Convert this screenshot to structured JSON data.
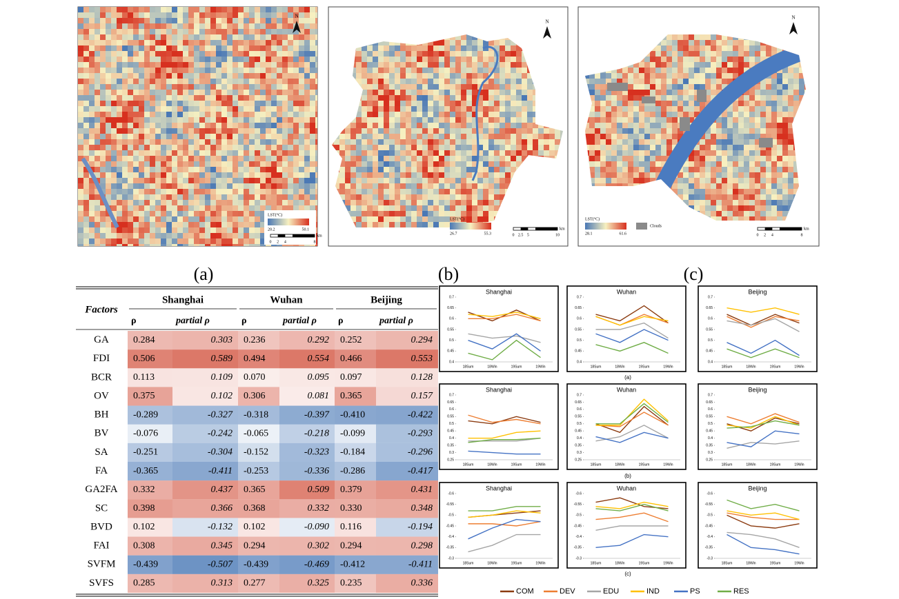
{
  "maps": [
    {
      "north": "N",
      "legend_title": "LST(°C)",
      "legend_min": 20.2,
      "legend_max": 50.1,
      "scale_labels": [
        0,
        2,
        4,
        8
      ],
      "scale_unit": "km"
    },
    {
      "north": "N",
      "legend_title": "LST(°C)",
      "legend_min": 26.7,
      "legend_max": 55.3,
      "scale_labels": [
        0,
        2.5,
        5,
        10
      ],
      "scale_unit": "km"
    },
    {
      "north": "N",
      "legend_title": "LST(°C)",
      "legend_min": 28.1,
      "legend_max": 61.6,
      "clouds": "Clouds",
      "scale_labels": [
        0,
        2,
        4,
        8
      ],
      "scale_unit": "km"
    }
  ],
  "captions": [
    "(a)",
    "(b)",
    "(c)"
  ],
  "table": {
    "header": {
      "factors": "Factors",
      "cities": [
        "Shanghai",
        "Wuhan",
        "Beijing"
      ],
      "sub": [
        "ρ",
        "partial ρ"
      ]
    },
    "rows": [
      [
        "GA",
        "0.284",
        "0.303",
        "0.236",
        "0.292",
        "0.252",
        "0.294"
      ],
      [
        "FDI",
        "0.506",
        "0.589",
        "0.494",
        "0.554",
        "0.466",
        "0.553"
      ],
      [
        "BCR",
        "0.113",
        "0.109",
        "0.070",
        "0.095",
        "0.097",
        "0.128"
      ],
      [
        "OV",
        "0.375",
        "0.102",
        "0.306",
        "0.081",
        "0.365",
        "0.157"
      ],
      [
        "BH",
        "-0.289",
        "-0.327",
        "-0.318",
        "-0.397",
        "-0.410",
        "-0.422"
      ],
      [
        "BV",
        "-0.076",
        "-0.242",
        "-0.065",
        "-0.218",
        "-0.099",
        "-0.293"
      ],
      [
        "SA",
        "-0.251",
        "-0.304",
        "-0.152",
        "-0.323",
        "-0.184",
        "-0.296"
      ],
      [
        "FA",
        "-0.365",
        "-0.411",
        "-0.253",
        "-0.336",
        "-0.286",
        "-0.417"
      ],
      [
        "GA2FA",
        "0.332",
        "0.437",
        "0.365",
        "0.509",
        "0.379",
        "0.431"
      ],
      [
        "SC",
        "0.398",
        "0.366",
        "0.368",
        "0.332",
        "0.330",
        "0.348"
      ],
      [
        "BVD",
        "0.102",
        "-0.132",
        "0.102",
        "-0.090",
        "0.116",
        "-0.194"
      ],
      [
        "FAI",
        "0.308",
        "0.345",
        "0.294",
        "0.302",
        "0.294",
        "0.298"
      ],
      [
        "SVFM",
        "-0.439",
        "-0.507",
        "-0.439",
        "-0.469",
        "-0.412",
        "-0.411"
      ],
      [
        "SVFS",
        "0.285",
        "0.313",
        "0.277",
        "0.325",
        "0.235",
        "0.336"
      ]
    ]
  },
  "chart_data": [
    {
      "type": "line",
      "title": "Shanghai",
      "categories": [
        "18Sum",
        "18Win",
        "19Sum",
        "19Win"
      ],
      "ylim": [
        0.4,
        0.7
      ],
      "yticks": [
        0.4,
        0.45,
        0.5,
        0.55,
        0.6,
        0.65,
        0.7
      ],
      "series": [
        {
          "name": "COM",
          "color": "#8b3a0f",
          "values": [
            0.63,
            0.59,
            0.64,
            0.59
          ]
        },
        {
          "name": "DEV",
          "color": "#ed7d31",
          "values": [
            0.6,
            0.6,
            0.62,
            0.59
          ]
        },
        {
          "name": "EDU",
          "color": "#a5a5a5",
          "values": [
            0.53,
            0.51,
            0.52,
            0.49
          ]
        },
        {
          "name": "IND",
          "color": "#ffc000",
          "values": [
            0.62,
            0.61,
            0.63,
            0.6
          ]
        },
        {
          "name": "PS",
          "color": "#4472c4",
          "values": [
            0.5,
            0.46,
            0.53,
            0.45
          ]
        },
        {
          "name": "RES",
          "color": "#70ad47",
          "values": [
            0.44,
            0.41,
            0.5,
            0.42
          ]
        }
      ]
    },
    {
      "type": "line",
      "title": "Wuhan",
      "categories": [
        "18Sum",
        "18Win",
        "19Sum",
        "19Win"
      ],
      "ylim": [
        0.4,
        0.7
      ],
      "yticks": [
        0.4,
        0.45,
        0.5,
        0.55,
        0.6,
        0.65,
        0.7
      ],
      "series": [
        {
          "name": "COM",
          "color": "#8b3a0f",
          "values": [
            0.62,
            0.59,
            0.66,
            0.58
          ]
        },
        {
          "name": "DEV",
          "color": "#ed7d31",
          "values": [
            0.61,
            0.57,
            0.62,
            0.58
          ]
        },
        {
          "name": "EDU",
          "color": "#a5a5a5",
          "values": [
            0.55,
            0.55,
            0.58,
            0.51
          ]
        },
        {
          "name": "IND",
          "color": "#ffc000",
          "values": [
            0.61,
            0.57,
            0.61,
            0.59
          ]
        },
        {
          "name": "PS",
          "color": "#4472c4",
          "values": [
            0.53,
            0.49,
            0.55,
            0.5
          ]
        },
        {
          "name": "RES",
          "color": "#70ad47",
          "values": [
            0.48,
            0.45,
            0.49,
            0.44
          ]
        }
      ]
    },
    {
      "type": "line",
      "title": "Beijing",
      "categories": [
        "18Sum",
        "18Win",
        "19Sum",
        "19Win"
      ],
      "ylim": [
        0.4,
        0.7
      ],
      "yticks": [
        0.4,
        0.45,
        0.5,
        0.55,
        0.6,
        0.65,
        0.7
      ],
      "series": [
        {
          "name": "COM",
          "color": "#8b3a0f",
          "values": [
            0.62,
            0.57,
            0.62,
            0.58
          ]
        },
        {
          "name": "DEV",
          "color": "#ed7d31",
          "values": [
            0.61,
            0.56,
            0.61,
            0.59
          ]
        },
        {
          "name": "EDU",
          "color": "#a5a5a5",
          "values": [
            0.59,
            0.57,
            0.6,
            0.54
          ]
        },
        {
          "name": "IND",
          "color": "#ffc000",
          "values": [
            0.65,
            0.63,
            0.65,
            0.62
          ]
        },
        {
          "name": "PS",
          "color": "#4472c4",
          "values": [
            0.49,
            0.44,
            0.5,
            0.43
          ]
        },
        {
          "name": "RES",
          "color": "#70ad47",
          "values": [
            0.46,
            0.42,
            0.46,
            0.42
          ]
        }
      ]
    },
    {
      "type": "line",
      "title": "Shanghai",
      "categories": [
        "18Sum",
        "18Win",
        "19Sum",
        "19Win"
      ],
      "ylim": [
        0.25,
        0.7
      ],
      "yticks": [
        0.25,
        0.3,
        0.35,
        0.4,
        0.45,
        0.5,
        0.55,
        0.6,
        0.65,
        0.7
      ],
      "series": [
        {
          "name": "COM",
          "color": "#8b3a0f",
          "values": [
            0.52,
            0.5,
            0.55,
            0.51
          ]
        },
        {
          "name": "DEV",
          "color": "#ed7d31",
          "values": [
            0.56,
            0.51,
            0.53,
            0.5
          ]
        },
        {
          "name": "EDU",
          "color": "#a5a5a5",
          "values": [
            0.38,
            0.38,
            0.38,
            0.4
          ]
        },
        {
          "name": "IND",
          "color": "#ffc000",
          "values": [
            0.4,
            0.4,
            0.44,
            0.45
          ]
        },
        {
          "name": "PS",
          "color": "#4472c4",
          "values": [
            0.31,
            0.3,
            0.29,
            0.29
          ]
        },
        {
          "name": "RES",
          "color": "#70ad47",
          "values": [
            0.37,
            0.39,
            0.39,
            0.4
          ]
        }
      ]
    },
    {
      "type": "line",
      "title": "Wuhan",
      "categories": [
        "18Sum",
        "18Win",
        "19Sum",
        "19Win"
      ],
      "ylim": [
        0.25,
        0.7
      ],
      "yticks": [
        0.25,
        0.3,
        0.35,
        0.4,
        0.45,
        0.5,
        0.55,
        0.6,
        0.65,
        0.7
      ],
      "series": [
        {
          "name": "COM",
          "color": "#8b3a0f",
          "values": [
            0.5,
            0.44,
            0.62,
            0.49
          ]
        },
        {
          "name": "DEV",
          "color": "#ed7d31",
          "values": [
            0.49,
            0.48,
            0.58,
            0.49
          ]
        },
        {
          "name": "EDU",
          "color": "#a5a5a5",
          "values": [
            0.38,
            0.41,
            0.49,
            0.4
          ]
        },
        {
          "name": "IND",
          "color": "#ffc000",
          "values": [
            0.49,
            0.49,
            0.67,
            0.52
          ]
        },
        {
          "name": "PS",
          "color": "#4472c4",
          "values": [
            0.41,
            0.37,
            0.44,
            0.4
          ]
        },
        {
          "name": "RES",
          "color": "#70ad47",
          "values": [
            0.5,
            0.5,
            0.64,
            0.51
          ]
        }
      ]
    },
    {
      "type": "line",
      "title": "Beijing",
      "categories": [
        "18Sum",
        "18Win",
        "19Sum",
        "19Win"
      ],
      "ylim": [
        0.25,
        0.7
      ],
      "yticks": [
        0.25,
        0.3,
        0.35,
        0.4,
        0.45,
        0.5,
        0.55,
        0.6,
        0.65,
        0.7
      ],
      "series": [
        {
          "name": "COM",
          "color": "#8b3a0f",
          "values": [
            0.5,
            0.45,
            0.54,
            0.5
          ]
        },
        {
          "name": "DEV",
          "color": "#ed7d31",
          "values": [
            0.55,
            0.5,
            0.57,
            0.51
          ]
        },
        {
          "name": "EDU",
          "color": "#a5a5a5",
          "values": [
            0.33,
            0.37,
            0.36,
            0.38
          ]
        },
        {
          "name": "IND",
          "color": "#ffc000",
          "values": [
            0.49,
            0.47,
            0.55,
            0.49
          ]
        },
        {
          "name": "PS",
          "color": "#4472c4",
          "values": [
            0.37,
            0.34,
            0.45,
            0.43
          ]
        },
        {
          "name": "RES",
          "color": "#70ad47",
          "values": [
            0.47,
            0.48,
            0.52,
            0.49
          ]
        }
      ]
    },
    {
      "type": "line",
      "title": "Shanghai",
      "categories": [
        "18Sum",
        "18Win",
        "19Sum",
        "19Win"
      ],
      "ylim": [
        -0.3,
        -0.6
      ],
      "yticks": [
        -0.3,
        -0.35,
        -0.4,
        -0.45,
        -0.5,
        -0.55,
        -0.6
      ],
      "series": [
        {
          "name": "COM",
          "color": "#8b3a0f",
          "values": [
            -0.49,
            -0.5,
            -0.51,
            -0.52
          ]
        },
        {
          "name": "DEV",
          "color": "#ed7d31",
          "values": [
            -0.46,
            -0.46,
            -0.45,
            -0.47
          ]
        },
        {
          "name": "EDU",
          "color": "#a5a5a5",
          "values": [
            -0.33,
            -0.36,
            -0.41,
            -0.41
          ]
        },
        {
          "name": "IND",
          "color": "#ffc000",
          "values": [
            -0.49,
            -0.5,
            -0.52,
            -0.51
          ]
        },
        {
          "name": "PS",
          "color": "#4472c4",
          "values": [
            -0.39,
            -0.44,
            -0.48,
            -0.47
          ]
        },
        {
          "name": "RES",
          "color": "#70ad47",
          "values": [
            -0.52,
            -0.52,
            -0.54,
            -0.54
          ]
        }
      ]
    },
    {
      "type": "line",
      "title": "Wuhan",
      "categories": [
        "18Sum",
        "18Win",
        "19Sum",
        "19Win"
      ],
      "ylim": [
        -0.3,
        -0.6
      ],
      "yticks": [
        -0.3,
        -0.35,
        -0.4,
        -0.45,
        -0.5,
        -0.55,
        -0.6
      ],
      "series": [
        {
          "name": "COM",
          "color": "#8b3a0f",
          "values": [
            -0.56,
            -0.58,
            -0.54,
            -0.53
          ]
        },
        {
          "name": "DEV",
          "color": "#ed7d31",
          "values": [
            -0.48,
            -0.49,
            -0.51,
            -0.47
          ]
        },
        {
          "name": "EDU",
          "color": "#a5a5a5",
          "values": [
            -0.43,
            -0.45,
            -0.45,
            -0.45
          ]
        },
        {
          "name": "IND",
          "color": "#ffc000",
          "values": [
            -0.54,
            -0.53,
            -0.56,
            -0.54
          ]
        },
        {
          "name": "PS",
          "color": "#4472c4",
          "values": [
            -0.35,
            -0.36,
            -0.41,
            -0.4
          ]
        },
        {
          "name": "RES",
          "color": "#70ad47",
          "values": [
            -0.53,
            -0.52,
            -0.55,
            -0.52
          ]
        }
      ]
    },
    {
      "type": "line",
      "title": "Beijing",
      "categories": [
        "18Sum",
        "18Win",
        "19Sum",
        "19Win"
      ],
      "ylim": [
        -0.3,
        -0.6
      ],
      "yticks": [
        -0.3,
        -0.35,
        -0.4,
        -0.45,
        -0.5,
        -0.55,
        -0.6
      ],
      "series": [
        {
          "name": "COM",
          "color": "#8b3a0f",
          "values": [
            -0.5,
            -0.45,
            -0.44,
            -0.46
          ]
        },
        {
          "name": "DEV",
          "color": "#ed7d31",
          "values": [
            -0.51,
            -0.49,
            -0.48,
            -0.48
          ]
        },
        {
          "name": "EDU",
          "color": "#a5a5a5",
          "values": [
            -0.42,
            -0.41,
            -0.39,
            -0.35
          ]
        },
        {
          "name": "IND",
          "color": "#ffc000",
          "values": [
            -0.52,
            -0.5,
            -0.51,
            -0.48
          ]
        },
        {
          "name": "PS",
          "color": "#4472c4",
          "values": [
            -0.41,
            -0.35,
            -0.34,
            -0.32
          ]
        },
        {
          "name": "RES",
          "color": "#70ad47",
          "values": [
            -0.57,
            -0.53,
            -0.55,
            -0.52
          ]
        }
      ]
    }
  ]
}
